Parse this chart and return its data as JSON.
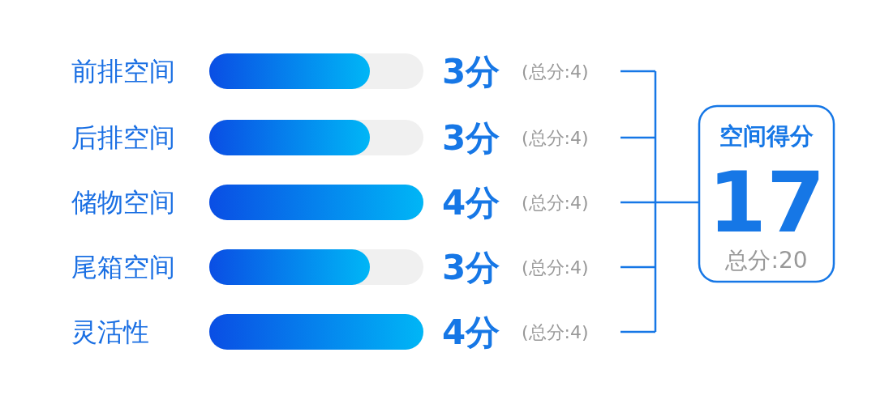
{
  "chart_data": {
    "type": "bar",
    "orientation": "horizontal",
    "categories": [
      "前排空间",
      "后排空间",
      "储物空间",
      "尾箱空间",
      "灵活性"
    ],
    "values": [
      3,
      3,
      4,
      3,
      4
    ],
    "value_labels": [
      "3分",
      "3分",
      "4分",
      "3分",
      "4分"
    ],
    "color": "#0a4ee4",
    "xlim": [
      0,
      4
    ],
    "annotations": [
      "(总分:4)",
      "(总分:4)",
      "(总分:4)",
      "(总分:4)",
      "(总分:4)",
      "空间得分",
      "17",
      "总分:20"
    ]
  }
}
